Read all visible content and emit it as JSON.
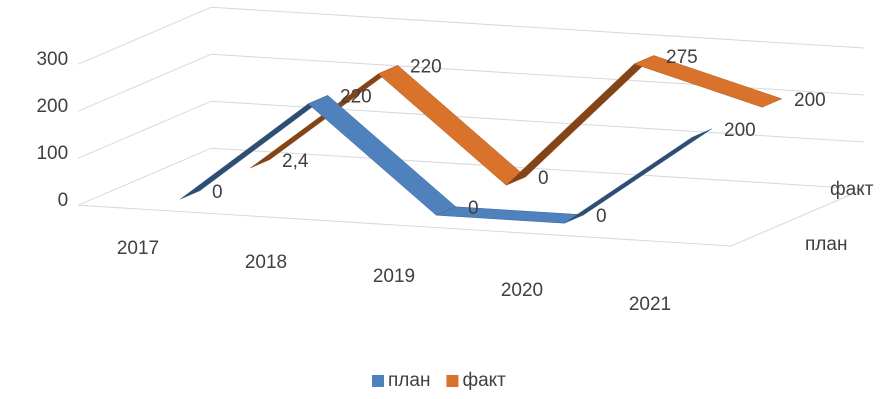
{
  "chart_data": {
    "type": "line3d",
    "categories": [
      "2017",
      "2018",
      "2019",
      "2020",
      "2021"
    ],
    "series": [
      {
        "name": "план",
        "color": "#4f81bd",
        "values": [
          0,
          220,
          0,
          0,
          200
        ],
        "value_labels": [
          "0",
          "220",
          "0",
          "0",
          "200"
        ]
      },
      {
        "name": "факт",
        "color": "#d9732c",
        "values": [
          2.4,
          220,
          0,
          275,
          200
        ],
        "value_labels": [
          "2,4",
          "220",
          "0",
          "275",
          "200"
        ]
      }
    ],
    "ylim": [
      0,
      300
    ],
    "yticks": [
      0,
      100,
      200,
      300
    ],
    "grid": true,
    "legend": "bottom"
  }
}
